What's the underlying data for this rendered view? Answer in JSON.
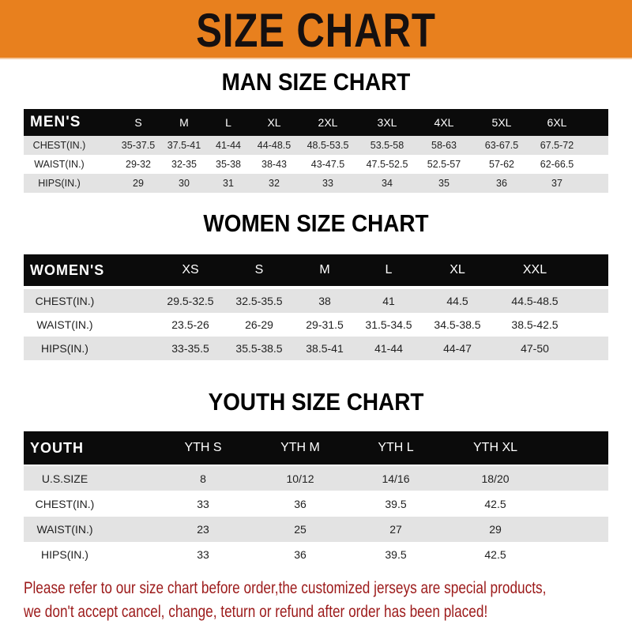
{
  "banner_title": "SIZE CHART",
  "colors": {
    "banner": "#e8801e",
    "header_row": "#0b0b0b",
    "stripe": "#e3e3e3",
    "note": "#9c1a1a"
  },
  "men": {
    "title": "MAN SIZE CHART",
    "headers": [
      "MEN'S",
      "S",
      "M",
      "L",
      "XL",
      "2XL",
      "3XL",
      "4XL",
      "5XL",
      "6XL"
    ],
    "rows": [
      [
        "CHEST(IN.)",
        "35-37.5",
        "37.5-41",
        "41-44",
        "44-48.5",
        "48.5-53.5",
        "53.5-58",
        "58-63",
        "63-67.5",
        "67.5-72"
      ],
      [
        "WAIST(IN.)",
        "29-32",
        "32-35",
        "35-38",
        "38-43",
        "43-47.5",
        "47.5-52.5",
        "52.5-57",
        "57-62",
        "62-66.5"
      ],
      [
        "HIPS(IN.)",
        "29",
        "30",
        "31",
        "32",
        "33",
        "34",
        "35",
        "36",
        "37"
      ]
    ]
  },
  "women": {
    "title": "WOMEN SIZE CHART",
    "headers": [
      "WOMEN'S",
      "XS",
      "S",
      "M",
      "L",
      "XL",
      "XXL"
    ],
    "rows": [
      [
        "CHEST(IN.)",
        "29.5-32.5",
        "32.5-35.5",
        "38",
        "41",
        "44.5",
        "44.5-48.5"
      ],
      [
        "WAIST(IN.)",
        "23.5-26",
        "26-29",
        "29-31.5",
        "31.5-34.5",
        "34.5-38.5",
        "38.5-42.5"
      ],
      [
        "HIPS(IN.)",
        "33-35.5",
        "35.5-38.5",
        "38.5-41",
        "41-44",
        "44-47",
        "47-50"
      ]
    ]
  },
  "youth": {
    "title": "YOUTH SIZE CHART",
    "headers": [
      "YOUTH",
      "YTH S",
      "YTH M",
      "YTH L",
      "YTH XL"
    ],
    "rows": [
      [
        "U.S.SIZE",
        "8",
        "10/12",
        "14/16",
        "18/20"
      ],
      [
        "CHEST(IN.)",
        "33",
        "36",
        "39.5",
        "42.5"
      ],
      [
        "WAIST(IN.)",
        "23",
        "25",
        "27",
        "29"
      ],
      [
        "HIPS(IN.)",
        "33",
        "36",
        "39.5",
        "42.5"
      ]
    ]
  },
  "note": {
    "line1": "Please refer to our size chart before order,the customized jerseys are special products,",
    "line2": "we don't accept cancel, change, teturn or refund after order has been placed!"
  }
}
